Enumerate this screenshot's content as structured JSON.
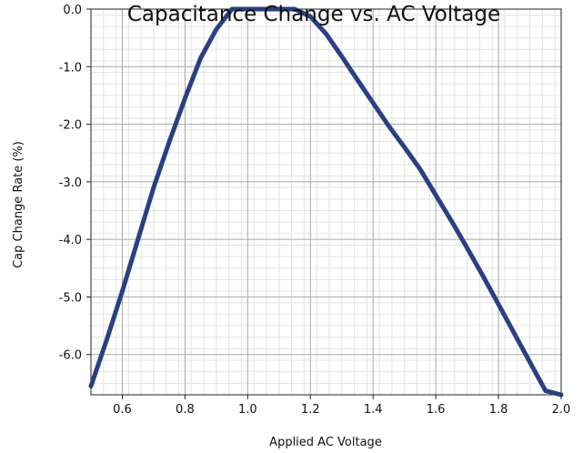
{
  "chart_data": {
    "type": "line",
    "title": "Capacitance Change vs. AC Voltage",
    "xlabel": "Applied AC Voltage",
    "ylabel": "Cap Change Rate (%)",
    "xlim": [
      0.5,
      2.0
    ],
    "ylim": [
      -6.7,
      0.0
    ],
    "xticks": [
      0.6,
      0.8,
      1.0,
      1.2,
      1.4,
      1.6,
      1.8,
      2.0
    ],
    "xtick_labels": [
      "0.6",
      "0.8",
      "1.0",
      "1.2",
      "1.4",
      "1.6",
      "1.8",
      "2.0"
    ],
    "yticks": [
      0.0,
      -1.0,
      -2.0,
      -3.0,
      -4.0,
      -5.0,
      -6.0
    ],
    "ytick_labels": [
      "0.0",
      "-1.0",
      "-2.0",
      "-3.0",
      "-4.0",
      "-5.0",
      "-6.0"
    ],
    "grid": true,
    "line_color": "#2b3f82",
    "series": [
      {
        "x": [
          0.5,
          0.55,
          0.6,
          0.65,
          0.7,
          0.75,
          0.8,
          0.85,
          0.9,
          0.95,
          1.0,
          1.05,
          1.1,
          1.15,
          1.2,
          1.25,
          1.3,
          1.35,
          1.4,
          1.45,
          1.5,
          1.55,
          1.6,
          1.65,
          1.7,
          1.75,
          1.8,
          1.85,
          1.9,
          1.95,
          2.0
        ],
        "y": [
          -6.55,
          -5.75,
          -4.9,
          -4.0,
          -3.1,
          -2.3,
          -1.55,
          -0.85,
          -0.35,
          0.0,
          0.0,
          0.0,
          0.0,
          0.0,
          -0.13,
          -0.43,
          -0.82,
          -1.23,
          -1.63,
          -2.03,
          -2.4,
          -2.78,
          -3.23,
          -3.68,
          -4.15,
          -4.63,
          -5.13,
          -5.63,
          -6.13,
          -6.63,
          -6.7
        ]
      }
    ]
  }
}
